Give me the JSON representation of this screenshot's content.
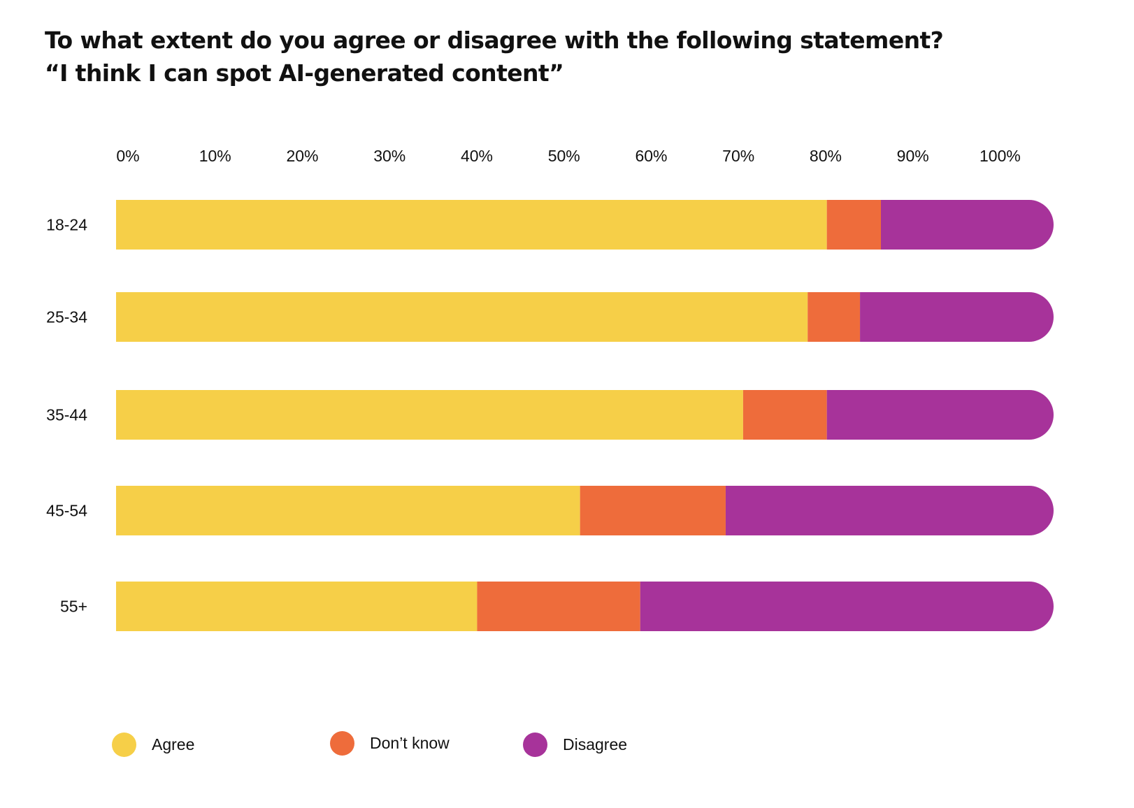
{
  "chart_data": {
    "type": "bar",
    "orientation": "horizontal",
    "stacked": true,
    "title": "To what extent do you agree or disagree with the following statement?",
    "subtitle": "“I think I can spot AI-generated content”",
    "categories": [
      "18-24",
      "25-34",
      "35-44",
      "45-54",
      "55+"
    ],
    "x_ticks": [
      "0%",
      "10%",
      "20%",
      "30%",
      "40%",
      "50%",
      "60%",
      "70%",
      "80%",
      "90%",
      "100%"
    ],
    "xlim": [
      0,
      107.5
    ],
    "series": [
      {
        "name": "Agree",
        "color": "#F6CF48",
        "values": [
          81.5,
          79.3,
          71.9,
          53.2,
          41.4
        ]
      },
      {
        "name": "Don’t know",
        "color": "#EE6C3B",
        "values": [
          6.2,
          6.0,
          9.6,
          16.7,
          18.7
        ]
      },
      {
        "name": "Disagree",
        "color": "#A7339A",
        "values": [
          19.8,
          22.2,
          26.0,
          37.6,
          47.4
        ]
      }
    ],
    "legend": [
      {
        "label": "Agree",
        "color": "#F6CF48"
      },
      {
        "label": "Don’t know",
        "color": "#EE6C3B"
      },
      {
        "label": "Disagree",
        "color": "#A7339A"
      }
    ],
    "legend_position": "bottom-left"
  }
}
